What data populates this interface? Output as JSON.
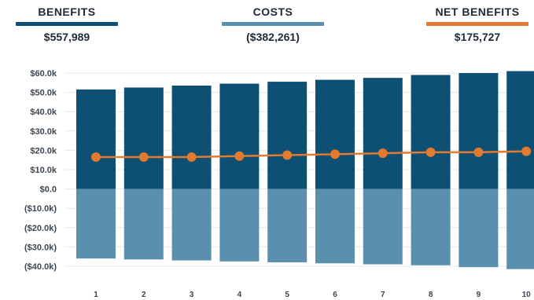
{
  "kpis": [
    {
      "label": "BENEFITS",
      "value": "$557,989",
      "color": "#0e4f74"
    },
    {
      "label": "COSTS",
      "value": "($382,261)",
      "color": "#5b8fae"
    },
    {
      "label": "NET BENEFITS",
      "value": "$175,727",
      "color": "#e27a2f"
    }
  ],
  "chart_data": {
    "type": "bar",
    "stacked": true,
    "categories": [
      "1",
      "2",
      "3",
      "4",
      "5",
      "6",
      "7",
      "8",
      "9",
      "10"
    ],
    "series": [
      {
        "name": "BENEFITS",
        "type": "bar",
        "color": "#0e4f74",
        "values": [
          51.5,
          52.5,
          53.5,
          54.5,
          55.5,
          56.5,
          57.5,
          59.0,
          60.0,
          61.0
        ]
      },
      {
        "name": "COSTS",
        "type": "bar",
        "color": "#5b8fae",
        "values": [
          -36.0,
          -36.5,
          -37.0,
          -37.5,
          -38.0,
          -38.5,
          -39.0,
          -39.5,
          -40.5,
          -41.5
        ]
      },
      {
        "name": "NET BENEFITS",
        "type": "line",
        "color": "#e27a2f",
        "values": [
          16.5,
          16.5,
          16.5,
          17.0,
          17.5,
          18.0,
          18.5,
          19.0,
          19.0,
          19.5
        ]
      }
    ],
    "ylim": [
      -40,
      60
    ],
    "y_ticks": [
      60,
      50,
      40,
      30,
      20,
      10,
      0,
      -10,
      -20,
      -30,
      -40
    ],
    "y_tick_labels": [
      "$60.0k",
      "$50.0k",
      "$40.0k",
      "$30.0k",
      "$20.0k",
      "$10.0k",
      "$0.0",
      "($10.0k)",
      "($20.0k)",
      "($30.0k)",
      "($40.0k)"
    ],
    "grid": true,
    "grid_color": "#e6e9ec"
  }
}
